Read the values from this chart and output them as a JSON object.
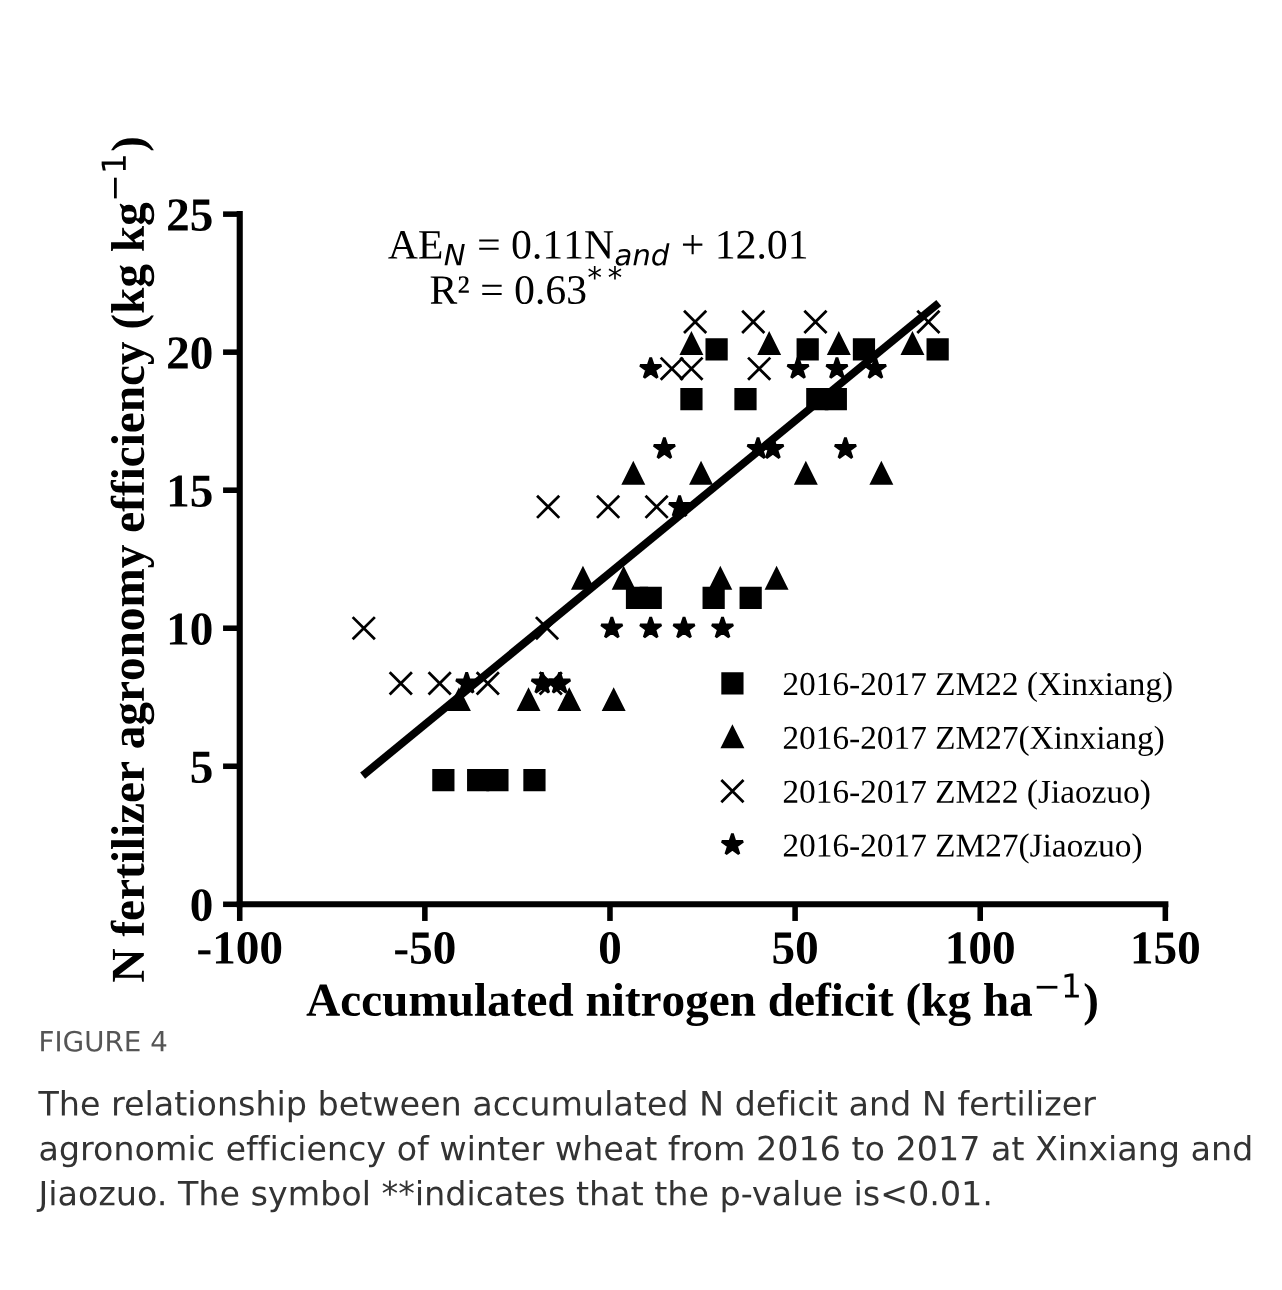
{
  "chart_data": {
    "type": "scatter",
    "xlabel": "Accumulated nitrogen deficit (kg ha$^{−1}$)",
    "ylabel": "N fertilizer agronomy efficiency (kg kg$^{−1}$)",
    "xlim": [
      -100,
      150
    ],
    "xticks": [
      -100,
      -50,
      0,
      50,
      100,
      150
    ],
    "ylim": [
      0,
      25
    ],
    "yticks": [
      0,
      5,
      10,
      15,
      20,
      25
    ],
    "grid": false,
    "legend": "bottom right",
    "series": [
      {
        "name": "2016-2017 ZM22 (Xinxiang)",
        "color": "#000000",
        "marker": "square",
        "x": [
          -45,
          -35.6,
          -30.4,
          -20.4,
          7.3,
          11,
          28,
          38,
          22,
          36.6,
          56,
          61,
          28.8,
          53.4,
          68.6,
          88.5
        ],
        "values": [
          4.5,
          4.5,
          4.5,
          4.5,
          11.1,
          11.1,
          11.1,
          11.1,
          18.3,
          18.3,
          18.3,
          18.3,
          20.1,
          20.1,
          20.1,
          20.1
        ]
      },
      {
        "name": "2016-2017 ZM27(Xinxiang)",
        "color": "#000000",
        "marker": "triangle",
        "x": [
          -40.8,
          -22,
          -11,
          1,
          -7.3,
          3.7,
          29.8,
          45,
          6.3,
          24.6,
          52.9,
          73.3,
          22,
          43,
          61.8,
          81.7
        ],
        "values": [
          7.4,
          7.4,
          7.4,
          7.4,
          11.8,
          11.8,
          11.8,
          11.8,
          15.6,
          15.6,
          15.6,
          15.6,
          20.3,
          20.3,
          20.3,
          20.3
        ]
      },
      {
        "name": "2016-2017 ZM22 (Jiaozuo)",
        "color": "#000000",
        "marker": "cross",
        "x": [
          -66.5,
          -17,
          -56.5,
          -46,
          -33,
          -16,
          -16.7,
          -0.5,
          12.6,
          16.7,
          22,
          40.3,
          23,
          38.7,
          55.5,
          86
        ],
        "values": [
          10,
          10,
          8,
          8,
          8,
          8,
          14.4,
          14.4,
          14.4,
          19.4,
          19.4,
          19.4,
          21.1,
          21.1,
          21.1,
          21.1
        ]
      },
      {
        "name": "2016-2017 ZM27(Jiaozuo)",
        "color": "#000000",
        "marker": "star",
        "x": [
          -38.7,
          -18.3,
          -13.6,
          0.5,
          11,
          20,
          30.4,
          18.8,
          14.7,
          40,
          44,
          63.6,
          11,
          50.8,
          61.3,
          71.7
        ],
        "values": [
          8,
          8,
          8,
          10,
          10,
          10,
          10,
          14.4,
          16.5,
          16.5,
          16.5,
          16.5,
          19.4,
          19.4,
          19.4,
          19.4
        ]
      },
      {
        "type": "line",
        "color": "#000000",
        "marker": "none",
        "line_style": "solid",
        "x": [
          -66,
          88
        ],
        "values": [
          4.75,
          21.69
        ]
      }
    ],
    "annotations": [
      "AE$_{N}$ = 0.11N$_{and}$ + 12.01",
      "R² = 0.63$^{**}$",
      "FIGURE 4",
      "The relationship between accumulated N deficit and N fertilizer agronomic efficiency of winter wheat from 2016 to 2017 at Xinxiang and Jiaozuo. The symbol **indicates that the p-value is<0.01."
    ]
  }
}
